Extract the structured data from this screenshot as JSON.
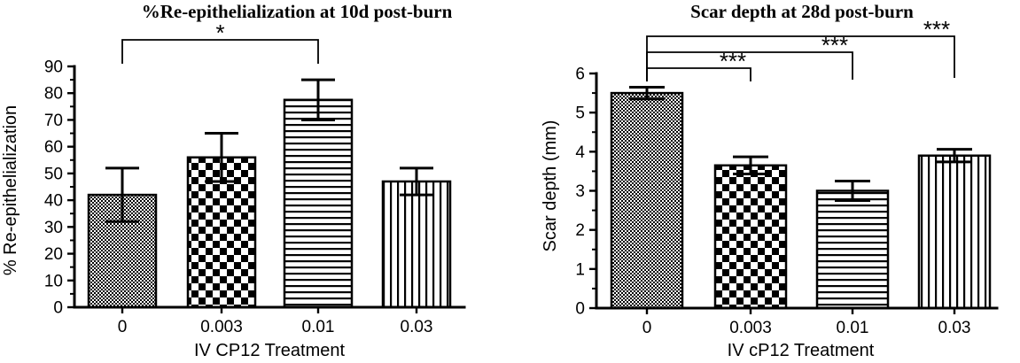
{
  "figure": {
    "background": "#ffffff",
    "ink_color": "#000000"
  },
  "chart_data": [
    {
      "type": "bar",
      "title": "%Re-epithelialization at 10d post-burn",
      "xlabel": "IV CP12 Treatment",
      "ylabel": "% Re-epithelialization",
      "categories": [
        "0",
        "0.003",
        "0.01",
        "0.03"
      ],
      "values": [
        42,
        56,
        77.5,
        47
      ],
      "errors": [
        10,
        9,
        7.5,
        5
      ],
      "ylim": [
        0,
        90
      ],
      "ytick_step": 10,
      "yminor_step": 5,
      "ytick_labels": [
        "0",
        "10",
        "20",
        "30",
        "40",
        "50",
        "60",
        "70",
        "80",
        "90"
      ],
      "bar_patterns": [
        "fine-checker",
        "checkerboard",
        "horizontal-lines",
        "vertical-lines"
      ],
      "bar_fill_color": "#000000",
      "grid": false,
      "legend": "none",
      "significance": [
        {
          "from": 0,
          "to": 2,
          "label": "*"
        }
      ]
    },
    {
      "type": "bar",
      "title": "Scar depth at 28d post-burn",
      "xlabel": "IV cP12 Treatment",
      "ylabel": "Scar depth (mm)",
      "categories": [
        "0",
        "0.003",
        "0.01",
        "0.03"
      ],
      "values": [
        5.5,
        3.65,
        3.0,
        3.9
      ],
      "errors": [
        0.15,
        0.22,
        0.25,
        0.16
      ],
      "ylim": [
        0,
        6
      ],
      "ytick_step": 1,
      "yminor_step": 0.5,
      "ytick_labels": [
        "0",
        "1",
        "2",
        "3",
        "4",
        "5",
        "6"
      ],
      "bar_patterns": [
        "fine-checker",
        "checkerboard",
        "horizontal-lines",
        "vertical-lines"
      ],
      "bar_fill_color": "#000000",
      "grid": false,
      "legend": "none",
      "significance": [
        {
          "from": 0,
          "to": 1,
          "label": "***"
        },
        {
          "from": 0,
          "to": 2,
          "label": "***"
        },
        {
          "from": 0,
          "to": 3,
          "label": "***"
        }
      ]
    }
  ]
}
